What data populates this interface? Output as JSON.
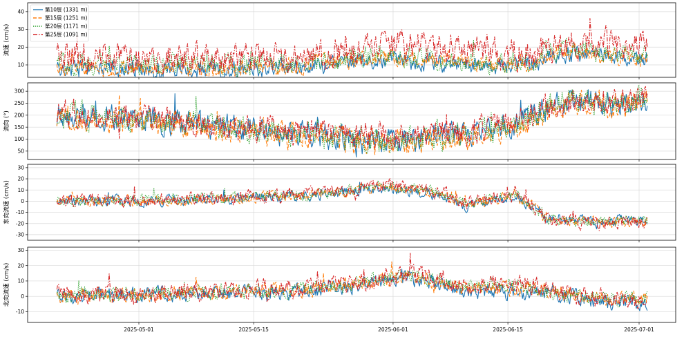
{
  "colors": {
    "s10": "#1f77b4",
    "s15": "#ff7f0e",
    "s20": "#2ca02c",
    "s25": "#d62728"
  },
  "legend": {
    "placement": "upper-left of top panel",
    "entries": [
      "第10层 (1331 m)",
      "第15层 (1251 m)",
      "第20层 (1171 m)",
      "第25层 (1091 m)"
    ]
  },
  "chart_data": [
    {
      "type": "line",
      "panel": "speed",
      "ylabel": "流速 (cm/s)",
      "ylim": [
        3,
        45
      ],
      "yticks": [
        10,
        20,
        30,
        40
      ],
      "grid": true,
      "x_range": [
        "2025-04-21",
        "2025-07-02"
      ],
      "x_ticks": [
        "2025-05-01",
        "2025-05-15",
        "2025-06-01",
        "2025-06-15",
        "2025-07-01"
      ],
      "series": [
        {
          "name": "第10层 (1331 m)",
          "style": "solid",
          "x_days": [
            0,
            10,
            20,
            30,
            40,
            50,
            56,
            62,
            72
          ],
          "values": [
            8,
            8,
            7,
            9,
            13,
            10,
            9,
            16,
            14
          ],
          "amplitude": 4
        },
        {
          "name": "第15层 (1251 m)",
          "style": "dashed",
          "x_days": [
            0,
            10,
            20,
            30,
            40,
            50,
            56,
            62,
            72
          ],
          "values": [
            9,
            8,
            8,
            10,
            14,
            11,
            9,
            18,
            13
          ],
          "amplitude": 4
        },
        {
          "name": "第20层 (1171 m)",
          "style": "dotted",
          "x_days": [
            0,
            10,
            20,
            30,
            40,
            50,
            56,
            62,
            72
          ],
          "values": [
            11,
            10,
            10,
            11,
            15,
            12,
            11,
            19,
            16
          ],
          "amplitude": 5
        },
        {
          "name": "第25层 (1091 m)",
          "style": "dashdot",
          "x_days": [
            0,
            10,
            20,
            30,
            40,
            50,
            56,
            62,
            72
          ],
          "values": [
            16,
            13,
            14,
            14,
            21,
            20,
            16,
            22,
            22
          ],
          "amplitude": 7
        }
      ]
    },
    {
      "type": "line",
      "panel": "direction",
      "ylabel": "流向 (°)",
      "ylim": [
        15,
        335
      ],
      "yticks": [
        0,
        50,
        100,
        150,
        200,
        250,
        300
      ],
      "grid": true,
      "x_range": [
        "2025-04-21",
        "2025-07-02"
      ],
      "x_ticks": [
        "2025-05-01",
        "2025-05-15",
        "2025-06-01",
        "2025-06-15",
        "2025-07-01"
      ],
      "series": [
        {
          "name": "第10层 (1331 m)",
          "style": "solid",
          "x_days": [
            0,
            10,
            20,
            30,
            40,
            50,
            56,
            60,
            62,
            72
          ],
          "values": [
            200,
            180,
            150,
            120,
            90,
            120,
            160,
            230,
            255,
            250
          ],
          "amplitude": 45
        },
        {
          "name": "第15层 (1251 m)",
          "style": "dashed",
          "x_days": [
            0,
            10,
            20,
            30,
            40,
            50,
            56,
            60,
            62,
            72
          ],
          "values": [
            195,
            170,
            140,
            115,
            80,
            110,
            150,
            225,
            250,
            250
          ],
          "amplitude": 45
        },
        {
          "name": "第20层 (1171 m)",
          "style": "dotted",
          "x_days": [
            0,
            10,
            20,
            30,
            40,
            50,
            56,
            60,
            62,
            72
          ],
          "values": [
            205,
            175,
            150,
            125,
            95,
            120,
            165,
            230,
            255,
            255
          ],
          "amplitude": 45
        },
        {
          "name": "第25层 (1091 m)",
          "style": "dashdot",
          "x_days": [
            0,
            10,
            20,
            30,
            40,
            50,
            56,
            60,
            62,
            72
          ],
          "values": [
            210,
            185,
            160,
            135,
            110,
            130,
            175,
            235,
            258,
            255
          ],
          "amplitude": 45
        }
      ]
    },
    {
      "type": "line",
      "panel": "east",
      "ylabel": "东向流速 (cm/s)",
      "ylim": [
        -35,
        33
      ],
      "yticks": [
        -30,
        -20,
        -10,
        0,
        10,
        20,
        30
      ],
      "grid": true,
      "x_range": [
        "2025-04-21",
        "2025-07-02"
      ],
      "x_ticks": [
        "2025-05-01",
        "2025-05-15",
        "2025-06-01",
        "2025-06-15",
        "2025-07-01"
      ],
      "series": [
        {
          "name": "第10层 (1331 m)",
          "style": "solid",
          "x_days": [
            0,
            10,
            20,
            30,
            35,
            40,
            47,
            50,
            56,
            60,
            65,
            72
          ],
          "values": [
            0,
            0,
            2,
            5,
            8,
            12,
            5,
            -5,
            5,
            -15,
            -18,
            -16
          ],
          "amplitude": 4
        },
        {
          "name": "第15层 (1251 m)",
          "style": "dashed",
          "x_days": [
            0,
            10,
            20,
            30,
            35,
            40,
            47,
            50,
            56,
            60,
            65,
            72
          ],
          "values": [
            0,
            0,
            2,
            5,
            9,
            13,
            6,
            -4,
            6,
            -16,
            -19,
            -17
          ],
          "amplitude": 4
        },
        {
          "name": "第20层 (1171 m)",
          "style": "dotted",
          "x_days": [
            0,
            10,
            20,
            30,
            35,
            40,
            47,
            50,
            56,
            60,
            65,
            72
          ],
          "values": [
            0,
            1,
            3,
            6,
            9,
            14,
            7,
            -3,
            7,
            -16,
            -19,
            -17
          ],
          "amplitude": 4
        },
        {
          "name": "第25层 (1091 m)",
          "style": "dashdot",
          "x_days": [
            0,
            10,
            20,
            30,
            35,
            40,
            47,
            50,
            56,
            60,
            65,
            72
          ],
          "values": [
            0,
            1,
            3,
            6,
            10,
            15,
            8,
            -2,
            8,
            -17,
            -20,
            -18
          ],
          "amplitude": 5
        }
      ]
    },
    {
      "type": "line",
      "panel": "north",
      "ylabel": "北向流速 (cm/s)",
      "ylim": [
        -17,
        32
      ],
      "yticks": [
        -10,
        0,
        10,
        20,
        30
      ],
      "grid": true,
      "x_range": [
        "2025-04-21",
        "2025-07-02"
      ],
      "x_ticks": [
        "2025-05-01",
        "2025-05-15",
        "2025-06-01",
        "2025-06-15",
        "2025-07-01"
      ],
      "series": [
        {
          "name": "第10层 (1331 m)",
          "style": "solid",
          "x_days": [
            0,
            10,
            20,
            30,
            38,
            42,
            50,
            55,
            60,
            66,
            72
          ],
          "values": [
            -1,
            1,
            2,
            3,
            8,
            12,
            4,
            2,
            3,
            -3,
            -4
          ],
          "amplitude": 4
        },
        {
          "name": "第15层 (1251 m)",
          "style": "dashed",
          "x_days": [
            0,
            10,
            20,
            30,
            38,
            42,
            50,
            55,
            60,
            66,
            72
          ],
          "values": [
            0,
            1,
            3,
            4,
            9,
            13,
            6,
            5,
            3,
            -2,
            -3
          ],
          "amplitude": 4
        },
        {
          "name": "第20层 (1171 m)",
          "style": "dotted",
          "x_days": [
            0,
            10,
            20,
            30,
            38,
            42,
            50,
            55,
            60,
            66,
            72
          ],
          "values": [
            0,
            2,
            3,
            4,
            9,
            13,
            7,
            7,
            4,
            -1,
            -2
          ],
          "amplitude": 4
        },
        {
          "name": "第25层 (1091 m)",
          "style": "dashdot",
          "x_days": [
            0,
            10,
            20,
            30,
            38,
            42,
            50,
            55,
            60,
            66,
            72
          ],
          "values": [
            1,
            2,
            4,
            5,
            10,
            14,
            8,
            9,
            4,
            0,
            -1
          ],
          "amplitude": 5
        }
      ]
    }
  ]
}
